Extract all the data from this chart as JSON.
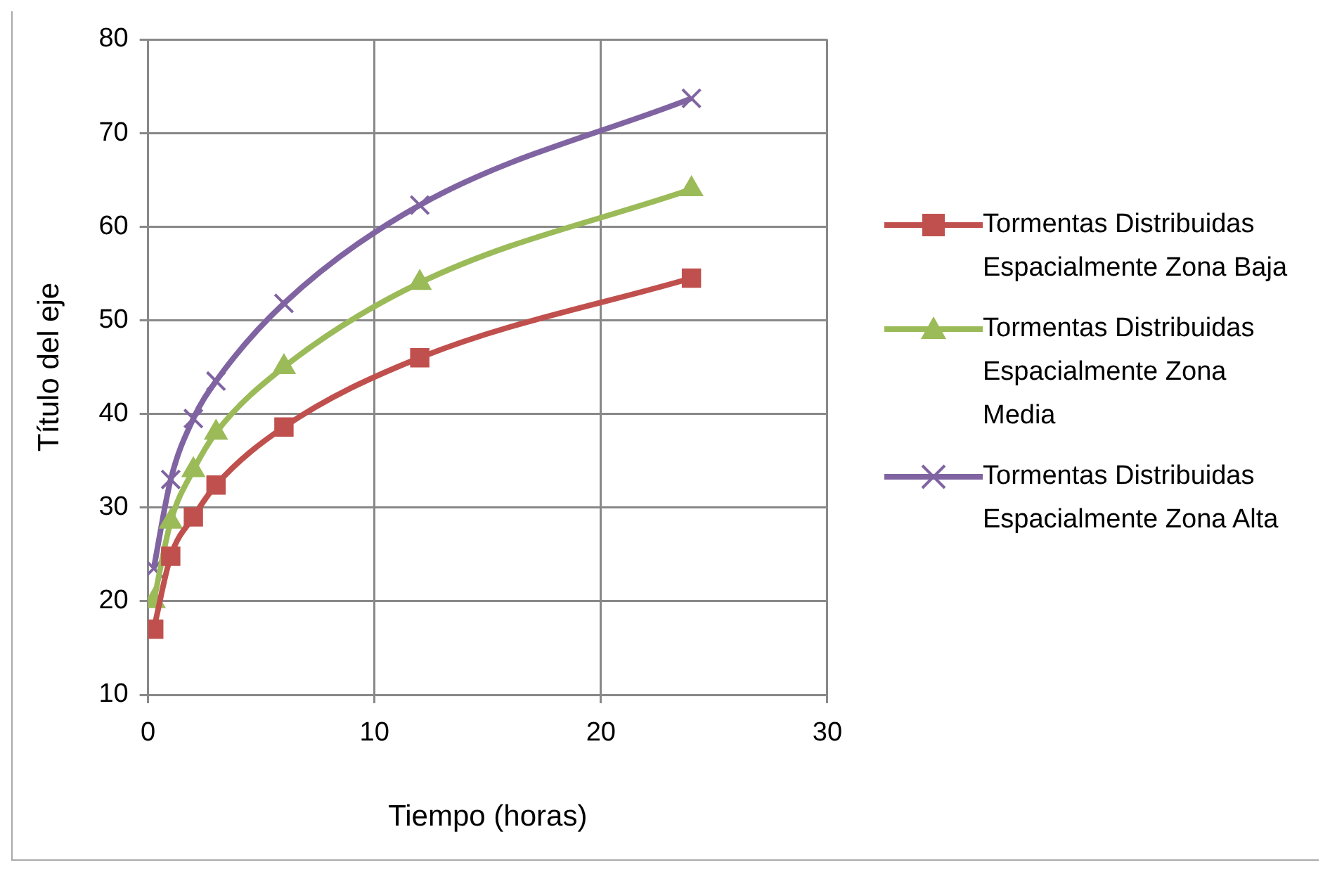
{
  "chart_data": {
    "type": "line",
    "xlabel": "Tiempo (horas)",
    "ylabel": "Título del eje",
    "x": [
      0.25,
      1,
      2,
      3,
      6,
      12,
      24
    ],
    "xlim": [
      0,
      30
    ],
    "xticks": [
      0,
      10,
      20,
      30
    ],
    "ylim": [
      10,
      80
    ],
    "yticks": [
      10,
      20,
      30,
      40,
      50,
      60,
      70,
      80
    ],
    "grid": true,
    "legend": "right",
    "series": [
      {
        "name": "Tormentas Distribuidas Espacialmente Zona Baja",
        "color": "#c0504d",
        "marker": "square",
        "values": [
          17,
          24.8,
          29,
          32.4,
          38.6,
          46,
          54.5
        ]
      },
      {
        "name": "Tormentas Distribuidas Espacialmente Zona Media",
        "color": "#9bbb59",
        "marker": "triangle",
        "values": [
          20,
          28.5,
          34,
          38,
          45,
          54,
          64
        ]
      },
      {
        "name": "Tormentas Distribuidas Espacialmente Zona Alta",
        "color": "#8064a2",
        "marker": "cross",
        "values": [
          23.5,
          33,
          39.5,
          43.5,
          51.8,
          62.3,
          73.7
        ]
      }
    ]
  }
}
